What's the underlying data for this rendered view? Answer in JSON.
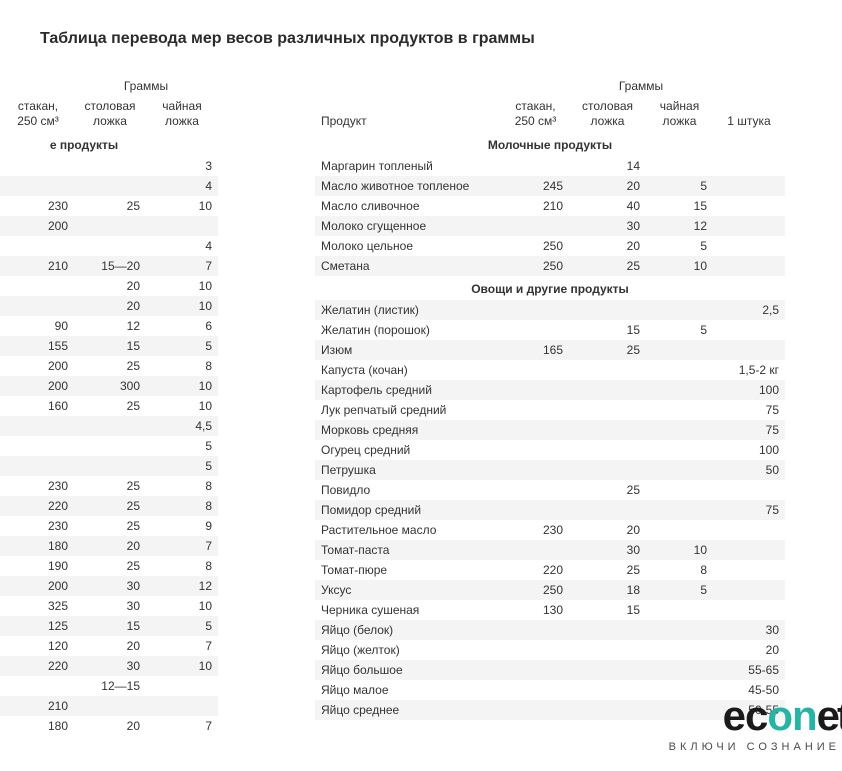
{
  "title": "Таблица перевода мер весов различных продуктов в граммы",
  "colors": {
    "background": "#ffffff",
    "text": "#333333",
    "row_stripe": "#f4f4f4",
    "logo_accent": "#28b4a4",
    "logo_dark": "#1a1a1a"
  },
  "typography": {
    "base_family": "Arial",
    "title_fontsize_pt": 12,
    "body_fontsize_pt": 9
  },
  "headers": {
    "grams": "Граммы",
    "product": "Продукт",
    "glass_line1": "стакан,",
    "glass_line2": "250 см³",
    "tbsp_line1": "столовая",
    "tbsp_line2": "ложка",
    "tsp_line1": "чайная",
    "tsp_line2": "ложка",
    "piece": "1 штука"
  },
  "left_table": {
    "columns": [
      "glass",
      "tbsp",
      "tsp"
    ],
    "rows": [
      {
        "type": "section",
        "label": "е продукты"
      },
      {
        "type": "data",
        "tsp": "3"
      },
      {
        "type": "data",
        "tsp": "4"
      },
      {
        "type": "data",
        "glass": "230",
        "tbsp": "25",
        "tsp": "10"
      },
      {
        "type": "data",
        "glass": "200"
      },
      {
        "type": "data",
        "tsp": "4"
      },
      {
        "type": "data",
        "glass": "210",
        "tbsp": "15—20",
        "tsp": "7"
      },
      {
        "type": "data",
        "tbsp": "20",
        "tsp": "10"
      },
      {
        "type": "data",
        "tbsp": "20",
        "tsp": "10"
      },
      {
        "type": "data",
        "glass": "90",
        "tbsp": "12",
        "tsp": "6"
      },
      {
        "type": "data",
        "glass": "155",
        "tbsp": "15",
        "tsp": "5"
      },
      {
        "type": "data",
        "glass": "200",
        "tbsp": "25",
        "tsp": "8"
      },
      {
        "type": "data",
        "glass": "200",
        "tbsp": "300",
        "tsp": "10"
      },
      {
        "type": "data",
        "glass": "160",
        "tbsp": "25",
        "tsp": "10"
      },
      {
        "type": "data",
        "tsp": "4,5"
      },
      {
        "type": "data",
        "tsp": "5"
      },
      {
        "type": "data",
        "tsp": "5"
      },
      {
        "type": "data",
        "glass": "230",
        "tbsp": "25",
        "tsp": "8"
      },
      {
        "type": "data",
        "glass": "220",
        "tbsp": "25",
        "tsp": "8"
      },
      {
        "type": "data",
        "glass": "230",
        "tbsp": "25",
        "tsp": "9"
      },
      {
        "type": "data",
        "glass": "180",
        "tbsp": "20",
        "tsp": "7"
      },
      {
        "type": "data",
        "glass": "190",
        "tbsp": "25",
        "tsp": "8"
      },
      {
        "type": "data",
        "glass": "200",
        "tbsp": "30",
        "tsp": "12"
      },
      {
        "type": "data",
        "glass": "325",
        "tbsp": "30",
        "tsp": "10"
      },
      {
        "type": "data",
        "glass": "125",
        "tbsp": "15",
        "tsp": "5"
      },
      {
        "type": "data",
        "glass": "120",
        "tbsp": "20",
        "tsp": "7"
      },
      {
        "type": "data",
        "glass": "220",
        "tbsp": "30",
        "tsp": "10"
      },
      {
        "type": "data",
        "tbsp": "12—15"
      },
      {
        "type": "data",
        "glass": "210"
      },
      {
        "type": "data",
        "glass": "180",
        "tbsp": "20",
        "tsp": "7"
      }
    ]
  },
  "right_table": {
    "columns": [
      "product",
      "glass",
      "tbsp",
      "tsp",
      "piece"
    ],
    "rows": [
      {
        "type": "section",
        "label": "Молочные продукты"
      },
      {
        "type": "data",
        "product": "Маргарин топленый",
        "tbsp": "14"
      },
      {
        "type": "data",
        "product": "Масло животное топленое",
        "glass": "245",
        "tbsp": "20",
        "tsp": "5"
      },
      {
        "type": "data",
        "product": "Масло сливочное",
        "glass": "210",
        "tbsp": "40",
        "tsp": "15"
      },
      {
        "type": "data",
        "product": "Молоко сгущенное",
        "tbsp": "30",
        "tsp": "12"
      },
      {
        "type": "data",
        "product": "Молоко цельное",
        "glass": "250",
        "tbsp": "20",
        "tsp": "5"
      },
      {
        "type": "data",
        "product": "Сметана",
        "glass": "250",
        "tbsp": "25",
        "tsp": "10"
      },
      {
        "type": "section",
        "label": "Овощи и другие продукты"
      },
      {
        "type": "data",
        "product": "Желатин (листик)",
        "piece": "2,5"
      },
      {
        "type": "data",
        "product": "Желатин (порошок)",
        "tbsp": "15",
        "tsp": "5"
      },
      {
        "type": "data",
        "product": "Изюм",
        "glass": "165",
        "tbsp": "25"
      },
      {
        "type": "data",
        "product": "Капуста (кочан)",
        "piece": "1,5-2 кг"
      },
      {
        "type": "data",
        "product": "Картофель средний",
        "piece": "100"
      },
      {
        "type": "data",
        "product": "Лук репчатый средний",
        "piece": "75"
      },
      {
        "type": "data",
        "product": "Морковь средняя",
        "piece": "75"
      },
      {
        "type": "data",
        "product": "Огурец средний",
        "piece": "100"
      },
      {
        "type": "data",
        "product": "Петрушка",
        "piece": "50"
      },
      {
        "type": "data",
        "product": "Повидло",
        "tbsp": "25"
      },
      {
        "type": "data",
        "product": "Помидор средний",
        "piece": "75"
      },
      {
        "type": "data",
        "product": "Растительное масло",
        "glass": "230",
        "tbsp": "20"
      },
      {
        "type": "data",
        "product": "Томат-паста",
        "tbsp": "30",
        "tsp": "10"
      },
      {
        "type": "data",
        "product": "Томат-пюре",
        "glass": "220",
        "tbsp": "25",
        "tsp": "8"
      },
      {
        "type": "data",
        "product": "Уксус",
        "glass": "250",
        "tbsp": "18",
        "tsp": "5"
      },
      {
        "type": "data",
        "product": "Черника сушеная",
        "glass": "130",
        "tbsp": "15"
      },
      {
        "type": "data",
        "product": "Яйцо (белок)",
        "piece": "30"
      },
      {
        "type": "data",
        "product": "Яйцо (желток)",
        "piece": "20"
      },
      {
        "type": "data",
        "product": "Яйцо большое",
        "piece": "55-65"
      },
      {
        "type": "data",
        "product": "Яйцо малое",
        "piece": "45-50"
      },
      {
        "type": "data",
        "product": "Яйцо среднее",
        "piece": "50-55"
      }
    ]
  },
  "logo": {
    "part1": "ec",
    "part2": "on",
    "part3": "et",
    "tagline": "ВКЛЮЧИ СОЗНАНИЕ"
  }
}
